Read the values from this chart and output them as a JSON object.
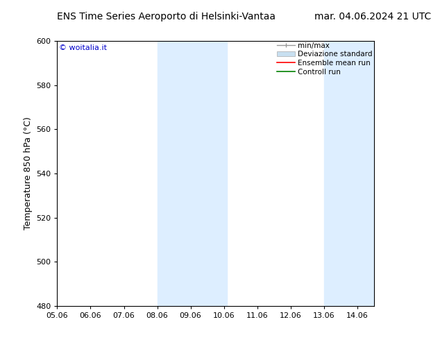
{
  "title_left": "ENS Time Series Aeroporto di Helsinki-Vantaa",
  "title_right": "mar. 04.06.2024 21 UTC",
  "ylabel": "Temperature 850 hPa (°C)",
  "ylim": [
    480,
    600
  ],
  "yticks": [
    480,
    500,
    520,
    540,
    560,
    580,
    600
  ],
  "xtick_labels": [
    "05.06",
    "06.06",
    "07.06",
    "08.06",
    "09.06",
    "10.06",
    "11.06",
    "12.06",
    "13.06",
    "14.06"
  ],
  "xtick_positions": [
    5,
    6,
    7,
    8,
    9,
    10,
    11,
    12,
    13,
    14
  ],
  "xlim": [
    5.0,
    14.5
  ],
  "background_color": "#ffffff",
  "band1_x1": 8.0,
  "band1_x2": 10.1,
  "band2_x1": 13.0,
  "band2_x2": 14.5,
  "band_color": "#ddeeff",
  "watermark_text": "© woitalia.it",
  "watermark_color": "#0000cc",
  "legend_label1": "min/max",
  "legend_label2": "Deviazione standard",
  "legend_label3": "Ensemble mean run",
  "legend_label4": "Controll run",
  "legend_color1": "#999999",
  "legend_color2": "#c8dff0",
  "legend_color3": "#ff0000",
  "legend_color4": "#008000",
  "font_size_title": 10,
  "font_size_ylabel": 9,
  "font_size_tick": 8,
  "font_size_legend": 7.5,
  "font_size_watermark": 8
}
